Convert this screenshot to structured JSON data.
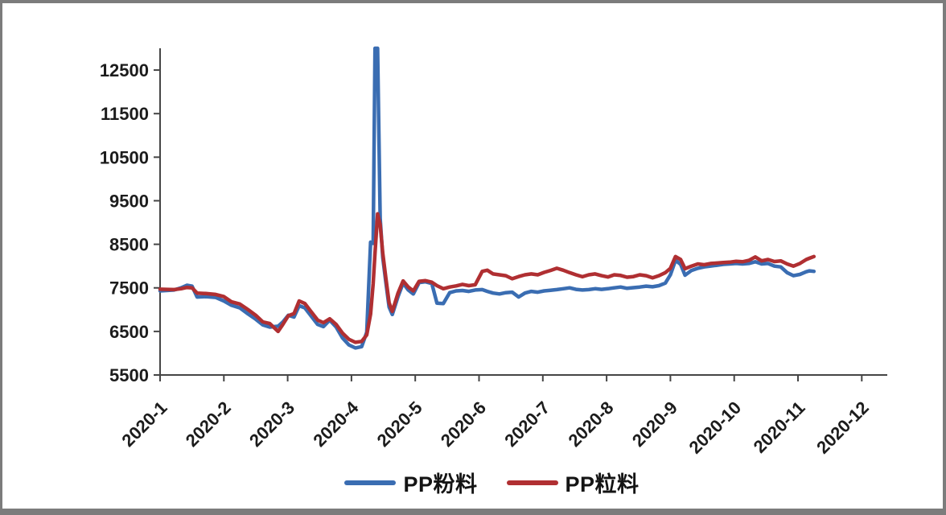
{
  "chart_data": {
    "type": "line",
    "title": "",
    "xlabel": "",
    "ylabel": "",
    "grid": "off",
    "legend_position": "bottom-center",
    "x_axis": {
      "labels": [
        "2020-1",
        "2020-2",
        "2020-3",
        "2020-4",
        "2020-5",
        "2020-6",
        "2020-7",
        "2020-8",
        "2020-9",
        "2020-10",
        "2020-11",
        "2020-12"
      ],
      "unit": "month",
      "range_months": [
        0,
        11.4
      ]
    },
    "y_axis": {
      "ticks": [
        12500,
        11500,
        10500,
        9500,
        8500,
        7500,
        6500,
        5500
      ],
      "range": [
        5500,
        13000
      ]
    },
    "x": [
      0.0,
      0.1,
      0.22,
      0.33,
      0.42,
      0.5,
      0.58,
      0.72,
      0.87,
      1.0,
      1.12,
      1.25,
      1.38,
      1.5,
      1.61,
      1.72,
      1.85,
      1.92,
      2.01,
      2.1,
      2.18,
      2.27,
      2.37,
      2.47,
      2.56,
      2.66,
      2.76,
      2.86,
      2.96,
      3.06,
      3.16,
      3.24,
      3.3,
      3.34,
      3.37,
      3.41,
      3.45,
      3.49,
      3.54,
      3.59,
      3.64,
      3.73,
      3.81,
      3.89,
      3.97,
      4.06,
      4.16,
      4.26,
      4.34,
      4.44,
      4.54,
      4.64,
      4.74,
      4.84,
      4.94,
      5.05,
      5.13,
      5.22,
      5.32,
      5.42,
      5.52,
      5.62,
      5.72,
      5.82,
      5.92,
      6.02,
      6.12,
      6.22,
      6.32,
      6.42,
      6.52,
      6.62,
      6.72,
      6.82,
      6.92,
      7.02,
      7.12,
      7.22,
      7.32,
      7.42,
      7.52,
      7.62,
      7.72,
      7.82,
      7.92,
      8.0,
      8.08,
      8.16,
      8.23,
      8.33,
      8.43,
      8.53,
      8.63,
      8.73,
      8.83,
      8.93,
      9.03,
      9.13,
      9.23,
      9.33,
      9.43,
      9.53,
      9.63,
      9.73,
      9.83,
      9.93,
      10.03,
      10.13,
      10.18,
      10.25
    ],
    "series": [
      {
        "name": "PP粉料",
        "color": "#3a6db2",
        "values": [
          7430,
          7440,
          7450,
          7500,
          7560,
          7540,
          7290,
          7300,
          7280,
          7200,
          7100,
          7040,
          6900,
          6780,
          6650,
          6600,
          6620,
          6710,
          6870,
          6830,
          7090,
          7040,
          6850,
          6660,
          6610,
          6760,
          6600,
          6350,
          6190,
          6120,
          6150,
          6480,
          8550,
          8520,
          13000,
          13000,
          9100,
          8200,
          7620,
          7060,
          6890,
          7300,
          7610,
          7450,
          7360,
          7620,
          7640,
          7600,
          7150,
          7140,
          7390,
          7430,
          7440,
          7420,
          7450,
          7460,
          7420,
          7380,
          7360,
          7390,
          7400,
          7290,
          7380,
          7420,
          7400,
          7430,
          7445,
          7460,
          7480,
          7500,
          7465,
          7450,
          7460,
          7480,
          7465,
          7480,
          7500,
          7520,
          7490,
          7505,
          7520,
          7540,
          7525,
          7550,
          7610,
          7800,
          8130,
          8040,
          7790,
          7900,
          7950,
          7980,
          8000,
          8020,
          8040,
          8050,
          8060,
          8050,
          8060,
          8100,
          8050,
          8060,
          8000,
          7980,
          7850,
          7780,
          7810,
          7870,
          7890,
          7880
        ]
      },
      {
        "name": "PP粒料",
        "color": "#b02f32",
        "values": [
          7470,
          7465,
          7460,
          7480,
          7510,
          7500,
          7380,
          7370,
          7350,
          7300,
          7180,
          7130,
          7000,
          6870,
          6720,
          6680,
          6500,
          6650,
          6860,
          6910,
          7200,
          7140,
          6950,
          6760,
          6700,
          6790,
          6660,
          6460,
          6320,
          6250,
          6270,
          6420,
          6900,
          7600,
          8300,
          9200,
          8950,
          8300,
          7720,
          7160,
          6960,
          7380,
          7660,
          7520,
          7430,
          7650,
          7665,
          7630,
          7550,
          7480,
          7520,
          7545,
          7580,
          7550,
          7570,
          7880,
          7905,
          7820,
          7800,
          7780,
          7710,
          7760,
          7800,
          7820,
          7800,
          7855,
          7900,
          7950,
          7905,
          7850,
          7800,
          7755,
          7800,
          7820,
          7780,
          7750,
          7800,
          7785,
          7745,
          7760,
          7800,
          7780,
          7730,
          7780,
          7850,
          7950,
          8220,
          8150,
          7940,
          8000,
          8050,
          8030,
          8060,
          8070,
          8080,
          8090,
          8110,
          8100,
          8130,
          8210,
          8120,
          8150,
          8105,
          8120,
          8050,
          8000,
          8060,
          8150,
          8180,
          8220
        ]
      }
    ],
    "colors": {
      "axis": "#454545",
      "tick_label": "#1c1c1c",
      "frame_border": "#7c7c7c"
    }
  },
  "legend": {
    "items": [
      {
        "label": "PP粉料"
      },
      {
        "label": "PP粒料"
      }
    ]
  }
}
